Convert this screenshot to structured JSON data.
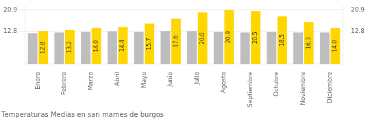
{
  "chart_data": {
    "type": "bar",
    "title": "Temperaturas Medias en san mames de burgos",
    "categories": [
      "Enero",
      "Febrero",
      "Marzo",
      "Abril",
      "Mayo",
      "Junio",
      "Julio",
      "Agosto",
      "Septiembre",
      "Octubre",
      "Noviembre",
      "Diciembre"
    ],
    "series": [
      {
        "color": "#BEBEBE",
        "values": [
          12.0,
          12.3,
          12.5,
          12.7,
          12.5,
          12.8,
          12.8,
          12.5,
          12.3,
          12.5,
          12.3,
          12.3
        ]
      },
      {
        "color": "#FFD700",
        "values": [
          12.8,
          13.2,
          14.0,
          14.4,
          15.7,
          17.6,
          20.0,
          20.9,
          20.5,
          18.5,
          16.3,
          14.0
        ],
        "data_labels": true,
        "value_labels": [
          "12.8",
          "13.2",
          "14.0",
          "14.4",
          "15.7",
          "17.6",
          "20.0",
          "20.9",
          "20.5",
          "18.5",
          "16.3",
          "14.0"
        ]
      }
    ],
    "ylim": [
      0,
      22.6
    ],
    "yticks": [
      12.8,
      20.9
    ],
    "y2lim": [
      0,
      22.6
    ],
    "y2ticks": [
      12.8,
      20.9
    ],
    "grid": true
  }
}
